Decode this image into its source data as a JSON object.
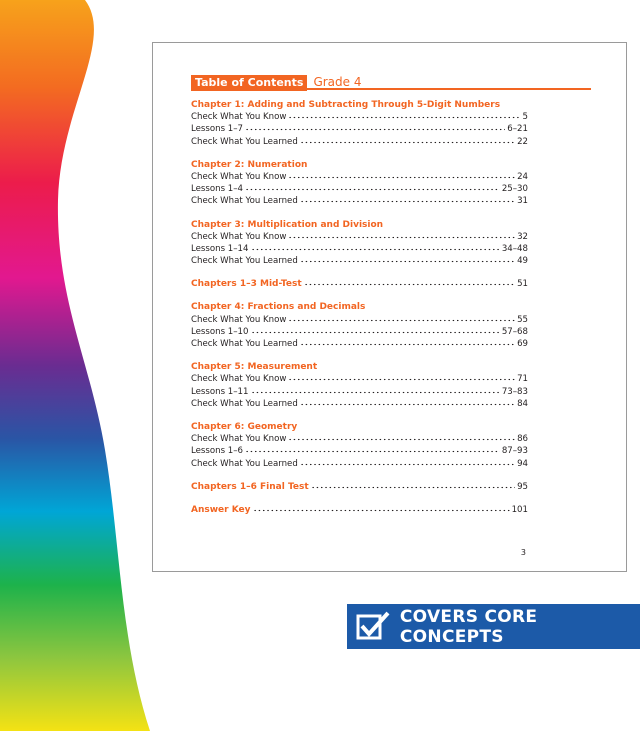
{
  "header": {
    "title": "Table of Contents",
    "subtitle": "Grade 4"
  },
  "sections": [
    {
      "title": "Chapter 1: Adding and Subtracting Through 5-Digit Numbers",
      "entries": [
        {
          "label": "Check What You Know",
          "page": 5
        },
        {
          "label": "Lessons 1–7",
          "page": "6–21"
        },
        {
          "label": "Check What You Learned",
          "page": 22
        }
      ]
    },
    {
      "title": "Chapter 2: Numeration",
      "entries": [
        {
          "label": "Check What You Know",
          "page": 24
        },
        {
          "label": "Lessons 1–4",
          "page": "25–30"
        },
        {
          "label": "Check What You Learned",
          "page": 31
        }
      ]
    },
    {
      "title": "Chapter 3: Multiplication and Division",
      "entries": [
        {
          "label": "Check What You Know",
          "page": 32
        },
        {
          "label": "Lessons 1–14",
          "page": "34–48"
        },
        {
          "label": "Check What You Learned",
          "page": 49
        }
      ]
    },
    {
      "title": "Chapters 1–3 Mid-Test",
      "page": 51
    },
    {
      "title": "Chapter 4: Fractions and Decimals",
      "entries": [
        {
          "label": "Check What You Know",
          "page": 55
        },
        {
          "label": "Lessons 1–10",
          "page": "57–68"
        },
        {
          "label": "Check What You Learned",
          "page": 69
        }
      ]
    },
    {
      "title": "Chapter 5: Measurement",
      "entries": [
        {
          "label": "Check What You Know",
          "page": 71
        },
        {
          "label": "Lessons 1–11",
          "page": "73–83"
        },
        {
          "label": "Check What You Learned",
          "page": 84
        }
      ]
    },
    {
      "title": "Chapter 6: Geometry",
      "entries": [
        {
          "label": "Check What You Know",
          "page": 86
        },
        {
          "label": "Lessons 1–6",
          "page": "87–93"
        },
        {
          "label": "Check What You Learned",
          "page": 94
        }
      ]
    },
    {
      "title": "Chapters 1–6 Final Test",
      "page": 95
    },
    {
      "title": "Answer Key",
      "page": 101
    }
  ],
  "page_number": 3,
  "badge": "COVERS CORE CONCEPTS"
}
